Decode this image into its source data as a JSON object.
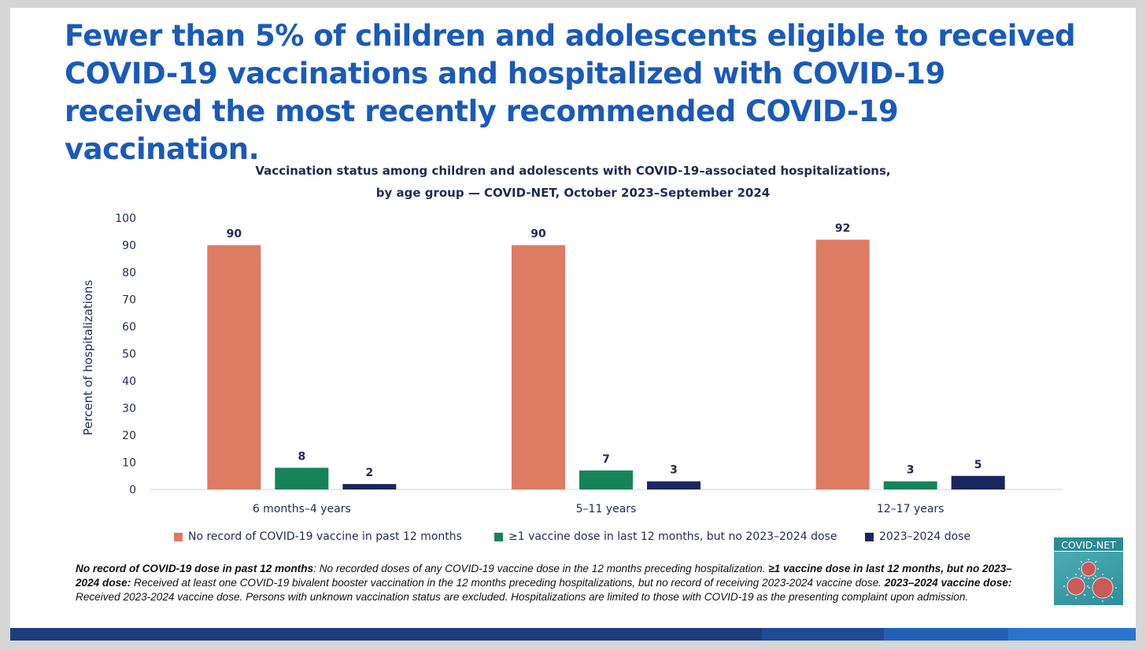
{
  "headline": "Fewer than 5% of children and adolescents eligible to received COVID-19 vaccinations and hospitalized with COVID-19 received the most recently recommended COVID-19 vaccination.",
  "chart_data": {
    "type": "bar",
    "title": "Vaccination status among children and adolescents with COVID-19–associated hospitalizations,",
    "subtitle": "by age group — COVID-NET, October 2023–September 2024",
    "ylabel": "Percent of hospitalizations",
    "xlabel": "",
    "ylim": [
      0,
      100
    ],
    "yticks": [
      0,
      10,
      20,
      30,
      40,
      50,
      60,
      70,
      80,
      90,
      100
    ],
    "grid": false,
    "legend_position": "bottom",
    "categories": [
      "6 months–4 years",
      "5–11 years",
      "12–17 years"
    ],
    "series": [
      {
        "name": "No record of COVID-19 vaccine in past 12 months",
        "color": "#dd7b63",
        "values": [
          90,
          90,
          92
        ]
      },
      {
        "name": "≥1 vaccine dose in last 12 months, but no 2023–2024 dose",
        "color": "#17835a",
        "values": [
          8,
          7,
          3
        ]
      },
      {
        "name": "2023–2024 dose",
        "color": "#1b2660",
        "values": [
          2,
          3,
          5
        ]
      }
    ]
  },
  "footnote": {
    "def1_term": "No record of COVID-19 dose in past 12 months",
    "def1_text": ": No recorded doses of any COVID-19 vaccine dose in the 12 months preceding hospitalization. ",
    "def2_term": "≥1 vaccine dose in last 12 months, but no 2023–2024 dose:",
    "def2_text": " Received at least one COVID-19 bivalent booster vaccination in the 12 months preceding hospitalizations, but no record of receiving 2023-2024 vaccine dose. ",
    "def3_term": "2023–2024 vaccine dose:",
    "def3_text": " Received 2023-2024 vaccine dose. Persons with unknown vaccination status are excluded. Hospitalizations are limited to those with COVID-19 as the presenting complaint upon admission."
  },
  "logo": {
    "text": "COVID-NET",
    "icon": "virus-icon"
  },
  "footer_colors": [
    "#1c3c7e",
    "#1e4a98",
    "#2260b8",
    "#2a74d0"
  ]
}
